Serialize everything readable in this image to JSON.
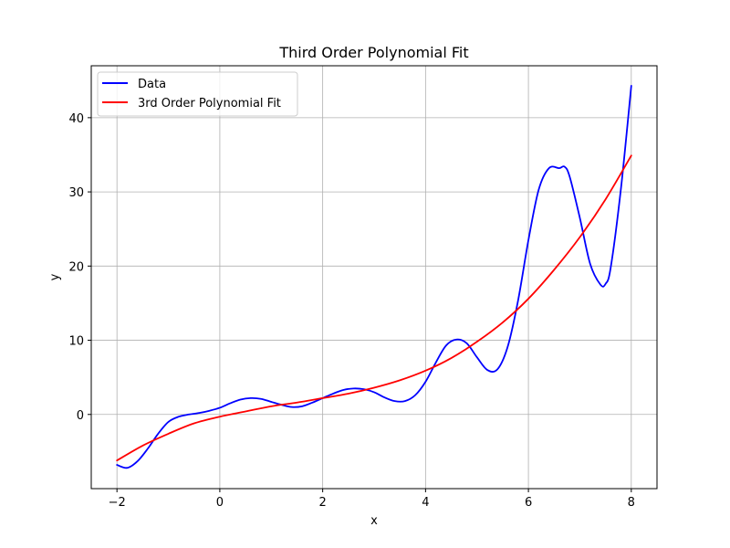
{
  "chart_data": {
    "type": "line",
    "title": "Third Order Polynomial Fit",
    "xlabel": "x",
    "ylabel": "y",
    "xlim": [
      -2.5,
      8.5
    ],
    "ylim": [
      -10,
      47
    ],
    "xticks": [
      -2,
      0,
      2,
      4,
      6,
      8
    ],
    "yticks": [
      0,
      10,
      20,
      30,
      40
    ],
    "grid": true,
    "legend_position": "top-left",
    "series": [
      {
        "name": "Data",
        "color": "#0000ff",
        "x": [
          -2.0,
          -1.8,
          -1.6,
          -1.4,
          -1.2,
          -1.0,
          -0.8,
          -0.6,
          -0.4,
          -0.2,
          0.0,
          0.2,
          0.4,
          0.6,
          0.8,
          1.0,
          1.2,
          1.4,
          1.6,
          1.8,
          2.0,
          2.2,
          2.4,
          2.6,
          2.8,
          3.0,
          3.2,
          3.4,
          3.6,
          3.8,
          4.0,
          4.2,
          4.4,
          4.6,
          4.8,
          5.0,
          5.2,
          5.4,
          5.6,
          5.8,
          6.0,
          6.2,
          6.4,
          6.6,
          6.7,
          6.8,
          7.0,
          7.2,
          7.4,
          7.5,
          7.6,
          7.8,
          8.0
        ],
        "y": [
          -6.8,
          -7.2,
          -6.3,
          -4.6,
          -2.6,
          -1.0,
          -0.3,
          0.0,
          0.2,
          0.5,
          0.9,
          1.5,
          2.0,
          2.2,
          2.1,
          1.7,
          1.3,
          1.0,
          1.1,
          1.6,
          2.2,
          2.8,
          3.3,
          3.5,
          3.4,
          3.0,
          2.3,
          1.8,
          1.8,
          2.6,
          4.4,
          7.0,
          9.3,
          10.1,
          9.6,
          7.7,
          6.0,
          6.1,
          9.2,
          15.4,
          23.5,
          30.3,
          33.2,
          33.2,
          33.4,
          32.1,
          26.5,
          20.3,
          17.5,
          17.6,
          19.8,
          30.5,
          44.3
        ]
      },
      {
        "name": "3rd Order Polynomial Fit",
        "color": "#ff0000",
        "x": [
          -2.0,
          -1.5,
          -1.0,
          -0.5,
          0.0,
          0.5,
          1.0,
          1.5,
          2.0,
          2.5,
          3.0,
          3.5,
          4.0,
          4.5,
          5.0,
          5.5,
          6.0,
          6.5,
          7.0,
          7.5,
          8.0
        ],
        "y": [
          -6.2,
          -4.2,
          -2.6,
          -1.2,
          -0.3,
          0.4,
          1.1,
          1.6,
          2.2,
          2.8,
          3.6,
          4.6,
          5.9,
          7.6,
          9.8,
          12.4,
          15.6,
          19.5,
          23.9,
          29.0,
          34.9
        ]
      }
    ]
  }
}
